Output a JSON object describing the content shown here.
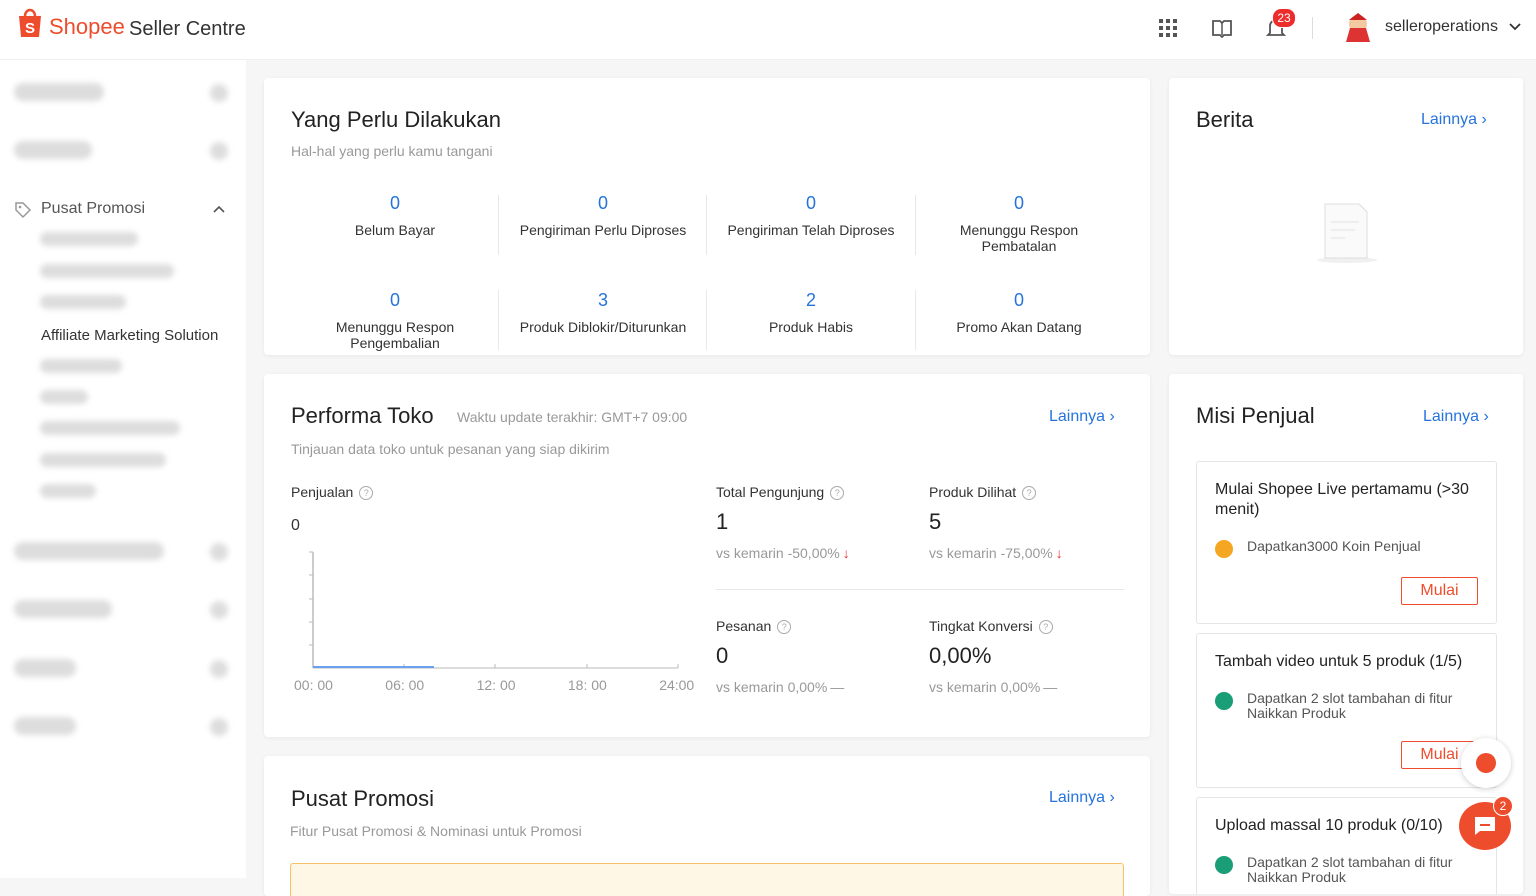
{
  "header": {
    "logo": "Shopee",
    "product": "Seller Centre",
    "notification_count": "23",
    "username": "selleroperations"
  },
  "sidebar": {
    "section": "Pusat Promosi",
    "active_item": "Affiliate Marketing Solution"
  },
  "todo": {
    "title": "Yang Perlu Dilakukan",
    "subtitle": "Hal-hal yang perlu kamu tangani",
    "items": [
      {
        "value": "0",
        "label": "Belum Bayar"
      },
      {
        "value": "0",
        "label": "Pengiriman Perlu Diproses"
      },
      {
        "value": "0",
        "label": "Pengiriman Telah Diproses"
      },
      {
        "value": "0",
        "label": "Menunggu Respon Pembatalan"
      },
      {
        "value": "0",
        "label": "Menunggu Respon Pengembalian"
      },
      {
        "value": "3",
        "label": "Produk Diblokir/Diturunkan"
      },
      {
        "value": "2",
        "label": "Produk Habis"
      },
      {
        "value": "0",
        "label": "Promo Akan Datang"
      }
    ]
  },
  "performa": {
    "title": "Performa Toko",
    "update": "Waktu update terakhir: GMT+7 09:00",
    "link": "Lainnya",
    "subtitle": "Tinjauan data toko untuk pesanan yang siap dikirim",
    "sales_label": "Penjualan",
    "sales_value": "0",
    "x_labels": [
      "00: 00",
      "06: 00",
      "12: 00",
      "18: 00",
      "24:00"
    ],
    "metrics": [
      {
        "label": "Total Pengunjung",
        "value": "1",
        "compare": "vs kemarin -50,00%"
      },
      {
        "label": "Produk Dilihat",
        "value": "5",
        "compare": "vs kemarin -75,00%"
      },
      {
        "label": "Pesanan",
        "value": "0",
        "compare": "vs kemarin 0,00%"
      },
      {
        "label": "Tingkat Konversi",
        "value": "0,00%",
        "compare": "vs kemarin 0,00%"
      }
    ]
  },
  "promo": {
    "title": "Pusat Promosi",
    "link": "Lainnya",
    "subtitle": "Fitur Pusat Promosi & Nominasi untuk Promosi"
  },
  "berita": {
    "title": "Berita",
    "link": "Lainnya"
  },
  "misi": {
    "title": "Misi Penjual",
    "link": "Lainnya",
    "missions": [
      {
        "title": "Mulai Shopee Live pertamamu (>30 menit)",
        "reward": "Dapatkan3000 Koin Penjual",
        "button": "Mulai"
      },
      {
        "title": "Tambah video untuk 5 produk (1/5)",
        "reward": "Dapatkan 2 slot tambahan di fitur Naikkan Produk",
        "button": "Mulai"
      },
      {
        "title": "Upload massal 10 produk (0/10)",
        "reward": "Dapatkan 2 slot tambahan di fitur Naikkan Produk"
      }
    ]
  },
  "chat": {
    "badge": "2"
  }
}
